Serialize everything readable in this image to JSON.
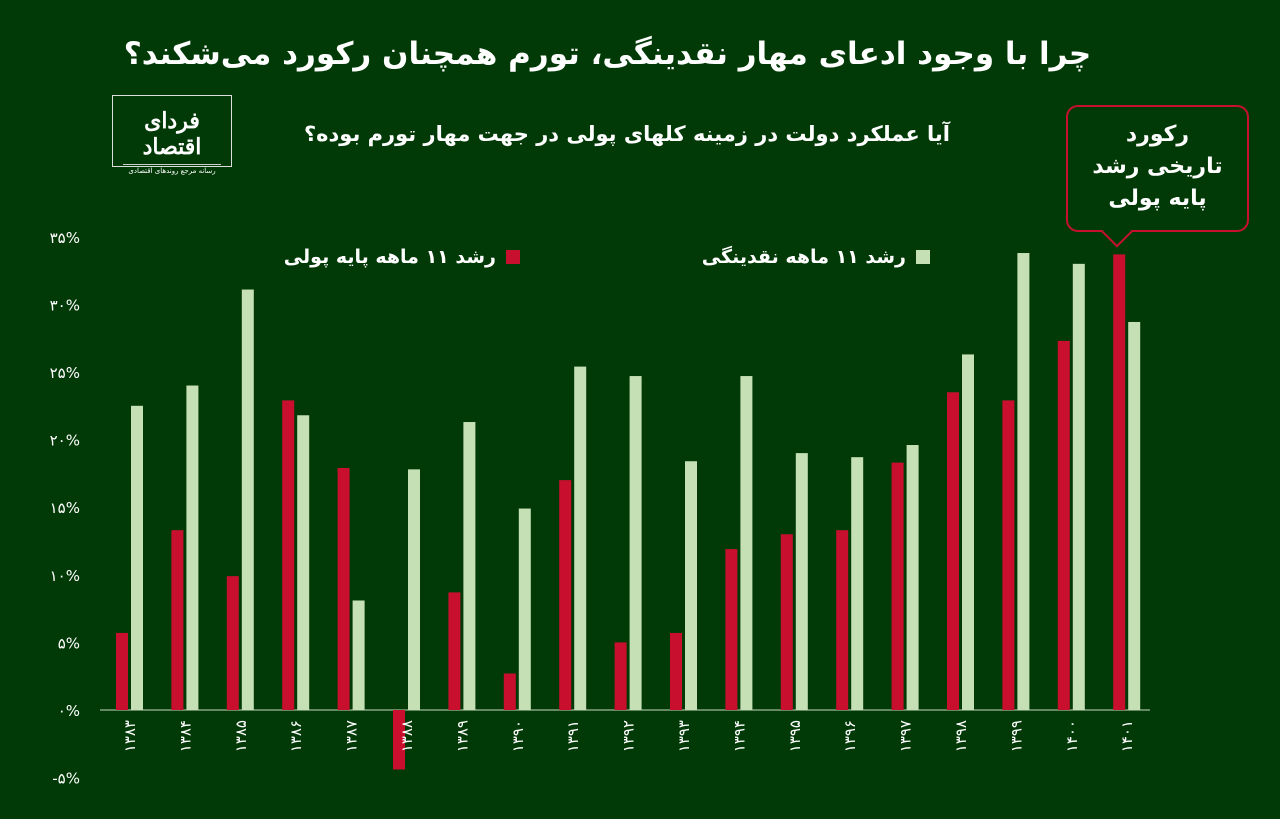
{
  "header": {
    "title": "چرا با وجود ادعای مهار نقدینگی، تورم همچنان رکورد می‌شکند؟",
    "subtitle": "آیا عملکرد دولت در زمینه کلهای پولی در جهت مهار تورم بوده؟"
  },
  "logo": {
    "name": "فردای اقتصاد",
    "tagline": "رسانه مرجع روندهای اقتصادی"
  },
  "callout": {
    "line1": "رکورد",
    "line2": "تاریخی رشد",
    "line3": "پایه پولی"
  },
  "colors": {
    "background": "#023a07",
    "base_money": "#c8102e",
    "liquidity": "#c5e0b4"
  },
  "chart_data": {
    "type": "bar",
    "title": "آیا عملکرد دولت در زمینه کلهای پولی در جهت مهار تورم بوده؟",
    "xlabel": "",
    "ylabel": "",
    "ylim": [
      -5,
      35
    ],
    "yticks": [
      -5,
      0,
      5,
      10,
      15,
      20,
      25,
      30,
      35
    ],
    "ytick_labels": [
      "-۵%",
      "۰%",
      "۵%",
      "۱۰%",
      "۱۵%",
      "۲۰%",
      "۲۵%",
      "۳۰%",
      "۳۵%"
    ],
    "legend_position": "top",
    "categories": [
      "۱۳۸۳",
      "۱۳۸۴",
      "۱۳۸۵",
      "۱۳۸۶",
      "۱۳۸۷",
      "۱۳۸۸",
      "۱۳۸۹",
      "۱۳۹۰",
      "۱۳۹۱",
      "۱۳۹۲",
      "۱۳۹۳",
      "۱۳۹۴",
      "۱۳۹۵",
      "۱۳۹۶",
      "۱۳۹۷",
      "۱۳۹۸",
      "۱۳۹۹",
      "۱۴۰۰",
      "۱۴۰۱"
    ],
    "series": [
      {
        "name": "رشد ۱۱ ماهه پایه پولی",
        "values": [
          5.7,
          13.3,
          9.9,
          22.9,
          17.9,
          -4.4,
          8.7,
          2.7,
          17.0,
          5.0,
          5.7,
          11.9,
          13.0,
          13.3,
          18.3,
          23.5,
          22.9,
          27.3,
          33.7
        ]
      },
      {
        "name": "رشد ۱۱ ماهه نقدینگی",
        "values": [
          22.5,
          24.0,
          31.1,
          21.8,
          8.1,
          17.8,
          21.3,
          14.9,
          25.4,
          24.7,
          18.4,
          24.7,
          19.0,
          18.7,
          19.6,
          26.3,
          33.8,
          33.0,
          28.7
        ]
      }
    ]
  }
}
